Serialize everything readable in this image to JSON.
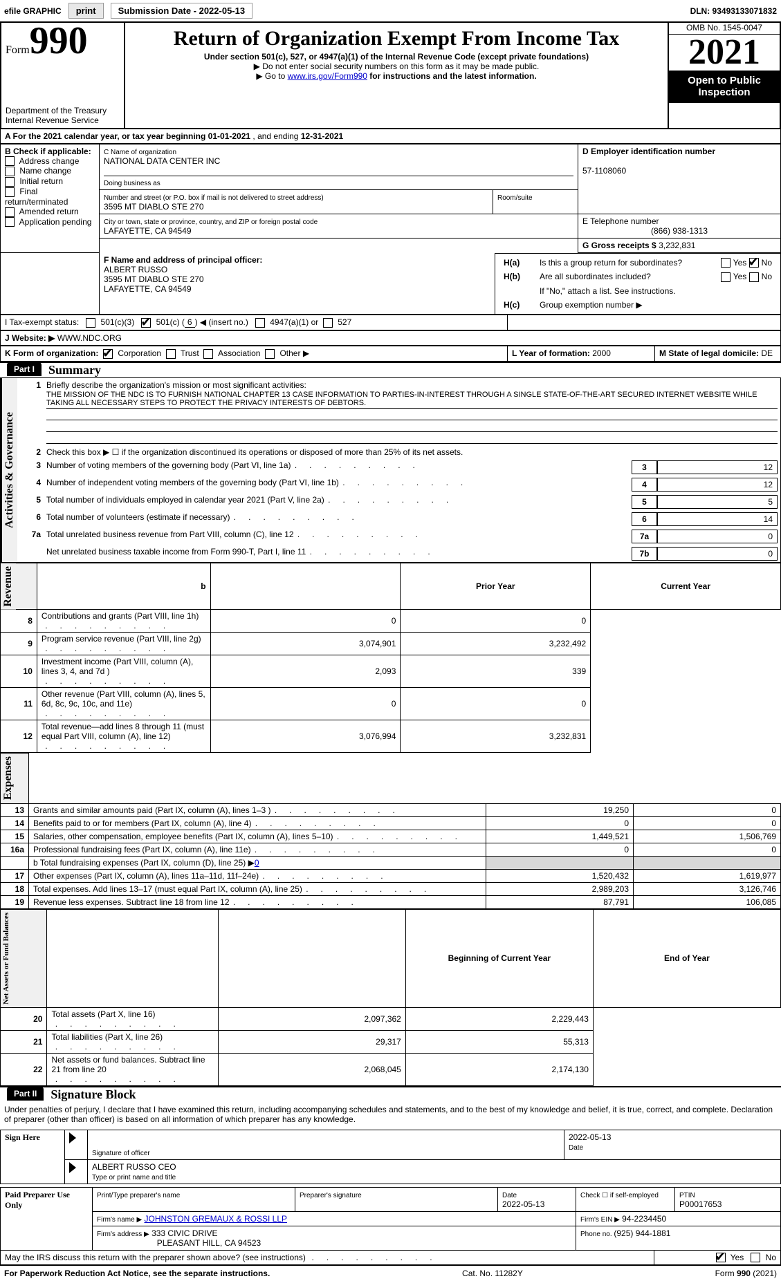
{
  "topbar": {
    "efile_label": "efile GRAPHIC",
    "print_btn": "print",
    "submission_label": "Submission Date - 2022-05-13",
    "dln_label": "DLN: 93493133071832"
  },
  "header": {
    "form_word": "Form",
    "form_num": "990",
    "title": "Return of Organization Exempt From Income Tax",
    "sub1": "Under section 501(c), 527, or 4947(a)(1) of the Internal Revenue Code (except private foundations)",
    "note1_prefix": "▶ Do not enter social security numbers on this form as it may be made public.",
    "note2_prefix": "▶ Go to ",
    "note2_link": "www.irs.gov/Form990",
    "note2_suffix": " for instructions and the latest information.",
    "dept1": "Department of the Treasury",
    "dept2": "Internal Revenue Service",
    "omb": "OMB No. 1545-0047",
    "year": "2021",
    "pub1": "Open to Public",
    "pub2": "Inspection"
  },
  "row_a": {
    "prefix": "A  For the 2021 calendar year, or tax year beginning ",
    "begin": "01-01-2021",
    "mid": "   , and ending ",
    "end": "12-31-2021"
  },
  "boxB": {
    "title": "B Check if applicable:",
    "items": [
      "Address change",
      "Name change",
      "Initial return",
      "Final return/terminated",
      "Amended return",
      "Application pending"
    ]
  },
  "boxC": {
    "label": "C Name of organization",
    "name": "NATIONAL DATA CENTER INC",
    "dba_label": "Doing business as",
    "addr_label": "Number and street (or P.O. box if mail is not delivered to street address)",
    "room_label": "Room/suite",
    "addr": "3595 MT DIABLO STE 270",
    "city_label": "City or town, state or province, country, and ZIP or foreign postal code",
    "city": "LAFAYETTE, CA  94549"
  },
  "boxD": {
    "label": "D Employer identification number",
    "ein": "57-1108060"
  },
  "boxE": {
    "label": "E Telephone number",
    "phone": "(866) 938-1313"
  },
  "boxG": {
    "label_prefix": "G Gross receipts $ ",
    "amount": "3,232,831"
  },
  "boxF": {
    "label": "F Name and address of principal officer:",
    "name": "ALBERT RUSSO",
    "addr1": "3595 MT DIABLO STE 270",
    "addr2": "LAFAYETTE, CA  94549"
  },
  "boxH": {
    "a_q": "Is this a group return for subordinates?",
    "b_q": "Are all subordinates included?",
    "b_note": "If \"No,\" attach a list. See instructions.",
    "c_label": "Group exemption number ▶",
    "yes": "Yes",
    "no": "No"
  },
  "rowI": {
    "label": "I    Tax-exempt status:",
    "o1": "501(c)(3)",
    "o2_a": "501(c) (",
    "o2_num": "6",
    "o2_b": ") ◀ (insert no.)",
    "o3": "4947(a)(1) or",
    "o4": "527"
  },
  "rowJ": {
    "label": "J    Website: ▶",
    "url": "  WWW.NDC.ORG"
  },
  "rowK": {
    "label": "K Form of organization:",
    "o1": "Corporation",
    "o2": "Trust",
    "o3": "Association",
    "o4": "Other ▶"
  },
  "rowL": {
    "label": "L Year of formation: ",
    "val": "2000"
  },
  "rowM": {
    "label": "M State of legal domicile: ",
    "val": "DE"
  },
  "part1": {
    "header": "Part I",
    "title": "Summary",
    "line1_label": "Briefly describe the organization's mission or most significant activities:",
    "mission": "THE MISSION OF THE NDC IS TO FURNISH NATIONAL CHAPTER 13 CASE INFORMATION TO PARTIES-IN-INTEREST THROUGH A SINGLE STATE-OF-THE-ART SECURED INTERNET WEBSITE WHILE TAKING ALL NECESSARY STEPS TO PROTECT THE PRIVACY INTERESTS OF DEBTORS.",
    "line2": "Check this box ▶ ☐ if the organization discontinued its operations or disposed of more than 25% of its net assets.",
    "lines_ag": [
      {
        "n": "3",
        "t": "Number of voting members of the governing body (Part VI, line 1a)",
        "box": "3",
        "v": "12"
      },
      {
        "n": "4",
        "t": "Number of independent voting members of the governing body (Part VI, line 1b)",
        "box": "4",
        "v": "12"
      },
      {
        "n": "5",
        "t": "Total number of individuals employed in calendar year 2021 (Part V, line 2a)",
        "box": "5",
        "v": "5"
      },
      {
        "n": "6",
        "t": "Total number of volunteers (estimate if necessary)",
        "box": "6",
        "v": "14"
      },
      {
        "n": "7a",
        "t": "Total unrelated business revenue from Part VIII, column (C), line 12",
        "box": "7a",
        "v": "0"
      },
      {
        "n": "",
        "t": "Net unrelated business taxable income from Form 990-T, Part I, line 11",
        "box": "7b",
        "v": "0"
      }
    ],
    "col_prior": "Prior Year",
    "col_current": "Current Year",
    "vert_ag": "Activities & Governance",
    "vert_rev": "Revenue",
    "vert_exp": "Expenses",
    "vert_na": "Net Assets or Fund Balances",
    "revenue": [
      {
        "n": "8",
        "t": "Contributions and grants (Part VIII, line 1h)",
        "p": "0",
        "c": "0"
      },
      {
        "n": "9",
        "t": "Program service revenue (Part VIII, line 2g)",
        "p": "3,074,901",
        "c": "3,232,492"
      },
      {
        "n": "10",
        "t": "Investment income (Part VIII, column (A), lines 3, 4, and 7d )",
        "p": "2,093",
        "c": "339"
      },
      {
        "n": "11",
        "t": "Other revenue (Part VIII, column (A), lines 5, 6d, 8c, 9c, 10c, and 11e)",
        "p": "0",
        "c": "0"
      },
      {
        "n": "12",
        "t": "Total revenue—add lines 8 through 11 (must equal Part VIII, column (A), line 12)",
        "p": "3,076,994",
        "c": "3,232,831"
      }
    ],
    "expenses": [
      {
        "n": "13",
        "t": "Grants and similar amounts paid (Part IX, column (A), lines 1–3 )",
        "p": "19,250",
        "c": "0"
      },
      {
        "n": "14",
        "t": "Benefits paid to or for members (Part IX, column (A), line 4)",
        "p": "0",
        "c": "0"
      },
      {
        "n": "15",
        "t": "Salaries, other compensation, employee benefits (Part IX, column (A), lines 5–10)",
        "p": "1,449,521",
        "c": "1,506,769"
      },
      {
        "n": "16a",
        "t": "Professional fundraising fees (Part IX, column (A), line 11e)",
        "p": "0",
        "c": "0"
      }
    ],
    "line_b_label": "b  Total fundraising expenses (Part IX, column (D), line 25) ▶",
    "line_b_val": "0",
    "expenses2": [
      {
        "n": "17",
        "t": "Other expenses (Part IX, column (A), lines 11a–11d, 11f–24e)",
        "p": "1,520,432",
        "c": "1,619,977"
      },
      {
        "n": "18",
        "t": "Total expenses. Add lines 13–17 (must equal Part IX, column (A), line 25)",
        "p": "2,989,203",
        "c": "3,126,746"
      },
      {
        "n": "19",
        "t": "Revenue less expenses. Subtract line 18 from line 12",
        "p": "87,791",
        "c": "106,085"
      }
    ],
    "col_beg": "Beginning of Current Year",
    "col_end": "End of Year",
    "netassets": [
      {
        "n": "20",
        "t": "Total assets (Part X, line 16)",
        "p": "2,097,362",
        "c": "2,229,443"
      },
      {
        "n": "21",
        "t": "Total liabilities (Part X, line 26)",
        "p": "29,317",
        "c": "55,313"
      },
      {
        "n": "22",
        "t": "Net assets or fund balances. Subtract line 21 from line 20",
        "p": "2,068,045",
        "c": "2,174,130"
      }
    ]
  },
  "part2": {
    "header": "Part II",
    "title": "Signature Block",
    "decl": "Under penalties of perjury, I declare that I have examined this return, including accompanying schedules and statements, and to the best of my knowledge and belief, it is true, correct, and complete. Declaration of preparer (other than officer) is based on all information of which preparer has any knowledge.",
    "sign_here": "Sign Here",
    "sig_officer": "Signature of officer",
    "sig_date_val": "2022-05-13",
    "date_label": "Date",
    "officer_name": "ALBERT RUSSO  CEO",
    "type_name": "Type or print name and title",
    "paid": "Paid Preparer Use Only",
    "prep_name_label": "Print/Type preparer's name",
    "prep_sig_label": "Preparer's signature",
    "prep_date_label": "Date",
    "prep_date": "2022-05-13",
    "check_self": "Check ☐ if self-employed",
    "ptin_label": "PTIN",
    "ptin": "P00017653",
    "firm_name_label": "Firm's name    ▶",
    "firm_name": "JOHNSTON GREMAUX & ROSSI LLP",
    "firm_ein_label": "Firm's EIN ▶",
    "firm_ein": "94-2234450",
    "firm_addr_label": "Firm's address ▶",
    "firm_addr1": "333 CIVIC DRIVE",
    "firm_addr2": "PLEASANT HILL, CA  94523",
    "phone_label": "Phone no. ",
    "phone": "(925) 944-1881"
  },
  "bottom": {
    "discuss": "May the IRS discuss this return with the preparer shown above? (see instructions)",
    "yes": "Yes",
    "no": "No",
    "pra": "For Paperwork Reduction Act Notice, see the separate instructions.",
    "cat": "Cat. No. 11282Y",
    "form": "Form 990 (2021)"
  }
}
